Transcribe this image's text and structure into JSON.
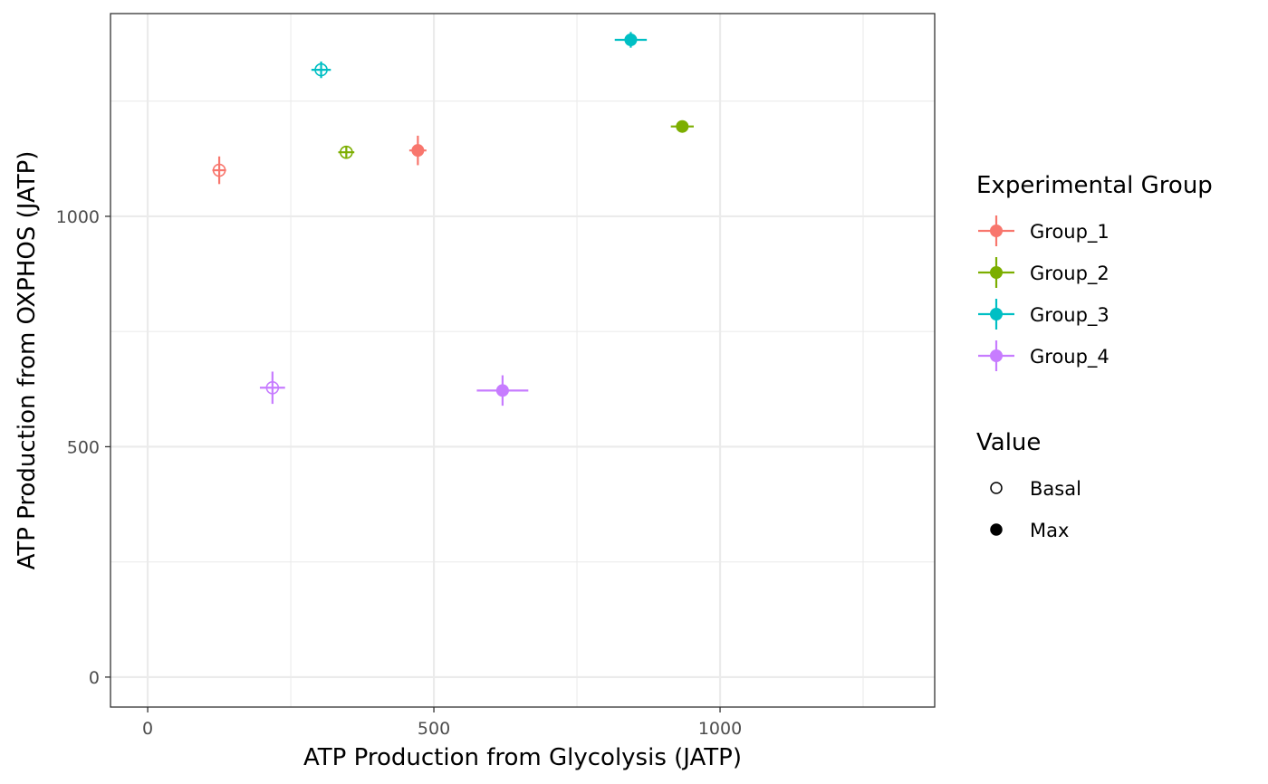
{
  "chart_data": {
    "type": "scatter",
    "title": "",
    "xlabel": "ATP Production from Glycolysis (JATP)",
    "ylabel": "ATP Production from OXPHOS (JATP)",
    "xlim": [
      -65,
      1375
    ],
    "ylim": [
      -65,
      1440
    ],
    "x_ticks": [
      0,
      500,
      1000
    ],
    "y_ticks": [
      0,
      500,
      1000
    ],
    "x_minor": [
      250,
      750,
      1250
    ],
    "y_minor": [
      250,
      750,
      1250
    ],
    "grid": true,
    "legend_position": "right",
    "color_legend": {
      "title": "Experimental Group",
      "entries": [
        {
          "name": "Group_1",
          "color": "#F8766D"
        },
        {
          "name": "Group_2",
          "color": "#7CAE00"
        },
        {
          "name": "Group_3",
          "color": "#00BFC4"
        },
        {
          "name": "Group_4",
          "color": "#C77CFF"
        }
      ]
    },
    "shape_legend": {
      "title": "Value",
      "entries": [
        {
          "name": "Basal",
          "shape": "open-circle"
        },
        {
          "name": "Max",
          "shape": "filled-circle"
        }
      ]
    },
    "points": [
      {
        "group": "Group_1",
        "value": "Basal",
        "x": 125,
        "y": 1100,
        "xerr": 12,
        "yerr": 30
      },
      {
        "group": "Group_1",
        "value": "Max",
        "x": 472,
        "y": 1143,
        "xerr": 15,
        "yerr": 32
      },
      {
        "group": "Group_2",
        "value": "Basal",
        "x": 347,
        "y": 1139,
        "xerr": 14,
        "yerr": 12
      },
      {
        "group": "Group_2",
        "value": "Max",
        "x": 934,
        "y": 1195,
        "xerr": 20,
        "yerr": 12
      },
      {
        "group": "Group_3",
        "value": "Basal",
        "x": 303,
        "y": 1318,
        "xerr": 17,
        "yerr": 18
      },
      {
        "group": "Group_3",
        "value": "Max",
        "x": 844,
        "y": 1383,
        "xerr": 28,
        "yerr": 17
      },
      {
        "group": "Group_4",
        "value": "Basal",
        "x": 218,
        "y": 628,
        "xerr": 22,
        "yerr": 35
      },
      {
        "group": "Group_4",
        "value": "Max",
        "x": 620,
        "y": 622,
        "xerr": 45,
        "yerr": 33
      }
    ]
  }
}
